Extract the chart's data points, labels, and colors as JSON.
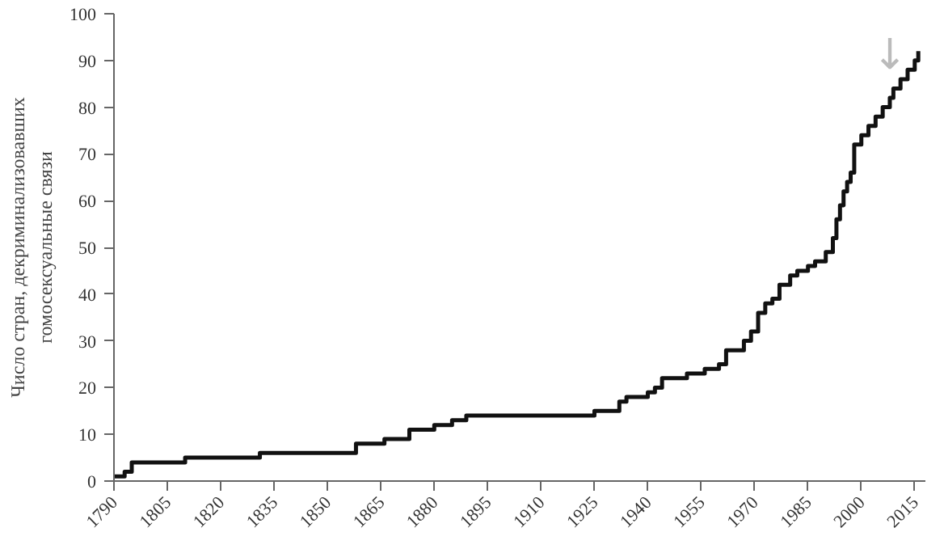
{
  "chart_data": {
    "type": "step",
    "ylabel": "Число стран, декриминализовавших гомосексуальные связи",
    "x": [
      1790,
      1791,
      1793,
      1795,
      1810,
      1831,
      1858,
      1866,
      1873,
      1880,
      1885,
      1889,
      1925,
      1932,
      1934,
      1940,
      1942,
      1944,
      1951,
      1956,
      1960,
      1962,
      1967,
      1969,
      1971,
      1973,
      1975,
      1977,
      1980,
      1982,
      1985,
      1987,
      1990,
      1992,
      1993,
      1994,
      1995,
      1996,
      1997,
      1998,
      2000,
      2002,
      2004,
      2006,
      2008,
      2009,
      2011,
      2013,
      2015,
      2016
    ],
    "series": [
      {
        "color": "#111111",
        "values": [
          1,
          1,
          2,
          4,
          5,
          6,
          8,
          9,
          11,
          12,
          13,
          14,
          15,
          17,
          18,
          19,
          20,
          22,
          23,
          24,
          25,
          28,
          30,
          32,
          36,
          38,
          39,
          42,
          44,
          45,
          46,
          47,
          49,
          52,
          56,
          59,
          62,
          64,
          66,
          72,
          74,
          76,
          78,
          80,
          82,
          84,
          86,
          88,
          90,
          92
        ]
      }
    ],
    "xlim": [
      1790,
      2018
    ],
    "ylim": [
      0,
      100
    ],
    "xticks": [
      1790,
      1805,
      1820,
      1835,
      1850,
      1865,
      1880,
      1895,
      1910,
      1925,
      1940,
      1955,
      1970,
      1985,
      2000,
      2015
    ],
    "yticks": [
      0,
      10,
      20,
      30,
      40,
      50,
      60,
      70,
      80,
      90,
      100
    ],
    "annotations": [
      "↓"
    ],
    "grid": false,
    "line_style": "solid"
  }
}
